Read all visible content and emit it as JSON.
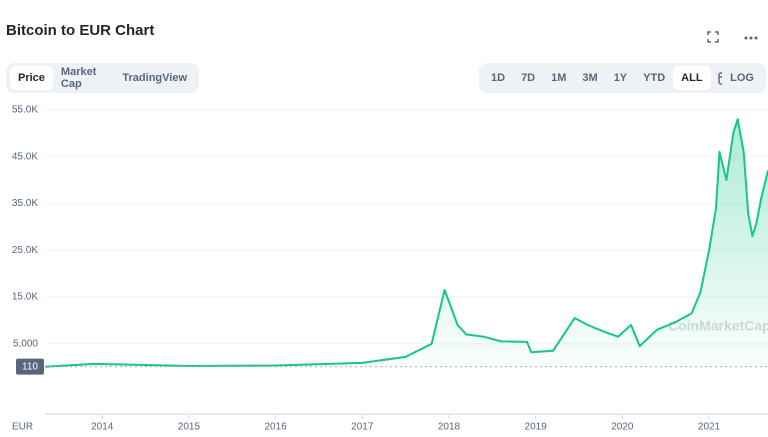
{
  "header": {
    "title": "Bitcoin to EUR Chart"
  },
  "toolbar": {
    "tabs": [
      "Price",
      "Market Cap",
      "TradingView"
    ],
    "ranges": [
      "1D",
      "7D",
      "1M",
      "3M",
      "1Y",
      "YTD",
      "ALL"
    ],
    "scale": "LOG"
  },
  "chart_data": {
    "type": "area",
    "unit_label": "EUR",
    "watermark": "CoinMarketCap",
    "x": [
      2013.34,
      2013.9,
      2014.5,
      2015,
      2016,
      2017,
      2017.5,
      2017.8,
      2017.95,
      2018.1,
      2018.2,
      2018.4,
      2018.6,
      2018.9,
      2018.95,
      2019.2,
      2019.45,
      2019.6,
      2019.8,
      2019.95,
      2020.1,
      2020.2,
      2020.4,
      2020.6,
      2020.8,
      2020.9,
      2021.0,
      2021.08,
      2021.12,
      2021.2,
      2021.28,
      2021.33,
      2021.4,
      2021.45,
      2021.5,
      2021.55,
      2021.6,
      2021.68
    ],
    "series": [
      {
        "name": "Price",
        "color": "#16c784",
        "values": [
          100,
          700,
          450,
          250,
          350,
          900,
          2200,
          5000,
          16500,
          9000,
          7000,
          6500,
          5500,
          5400,
          3200,
          3500,
          10500,
          9000,
          7500,
          6500,
          9000,
          4500,
          8000,
          9500,
          11500,
          16000,
          25000,
          34000,
          46000,
          40000,
          50000,
          53000,
          46000,
          33000,
          28000,
          31000,
          36000,
          42000
        ]
      }
    ],
    "xlim": [
      2013.34,
      2021.68
    ],
    "xticks": [
      2014,
      2015,
      2016,
      2017,
      2018,
      2019,
      2020,
      2021
    ],
    "ylim": [
      -9800,
      57100
    ],
    "yticks": [
      {
        "value": 5000,
        "label": "5,000"
      },
      {
        "value": 15000,
        "label": "15.0K"
      },
      {
        "value": 25000,
        "label": "25.0K"
      },
      {
        "value": 35000,
        "label": "35.0K"
      },
      {
        "value": 45000,
        "label": "45.0K"
      },
      {
        "value": 55000,
        "label": "55.0K"
      }
    ],
    "reference_line": 110,
    "grid": true
  }
}
